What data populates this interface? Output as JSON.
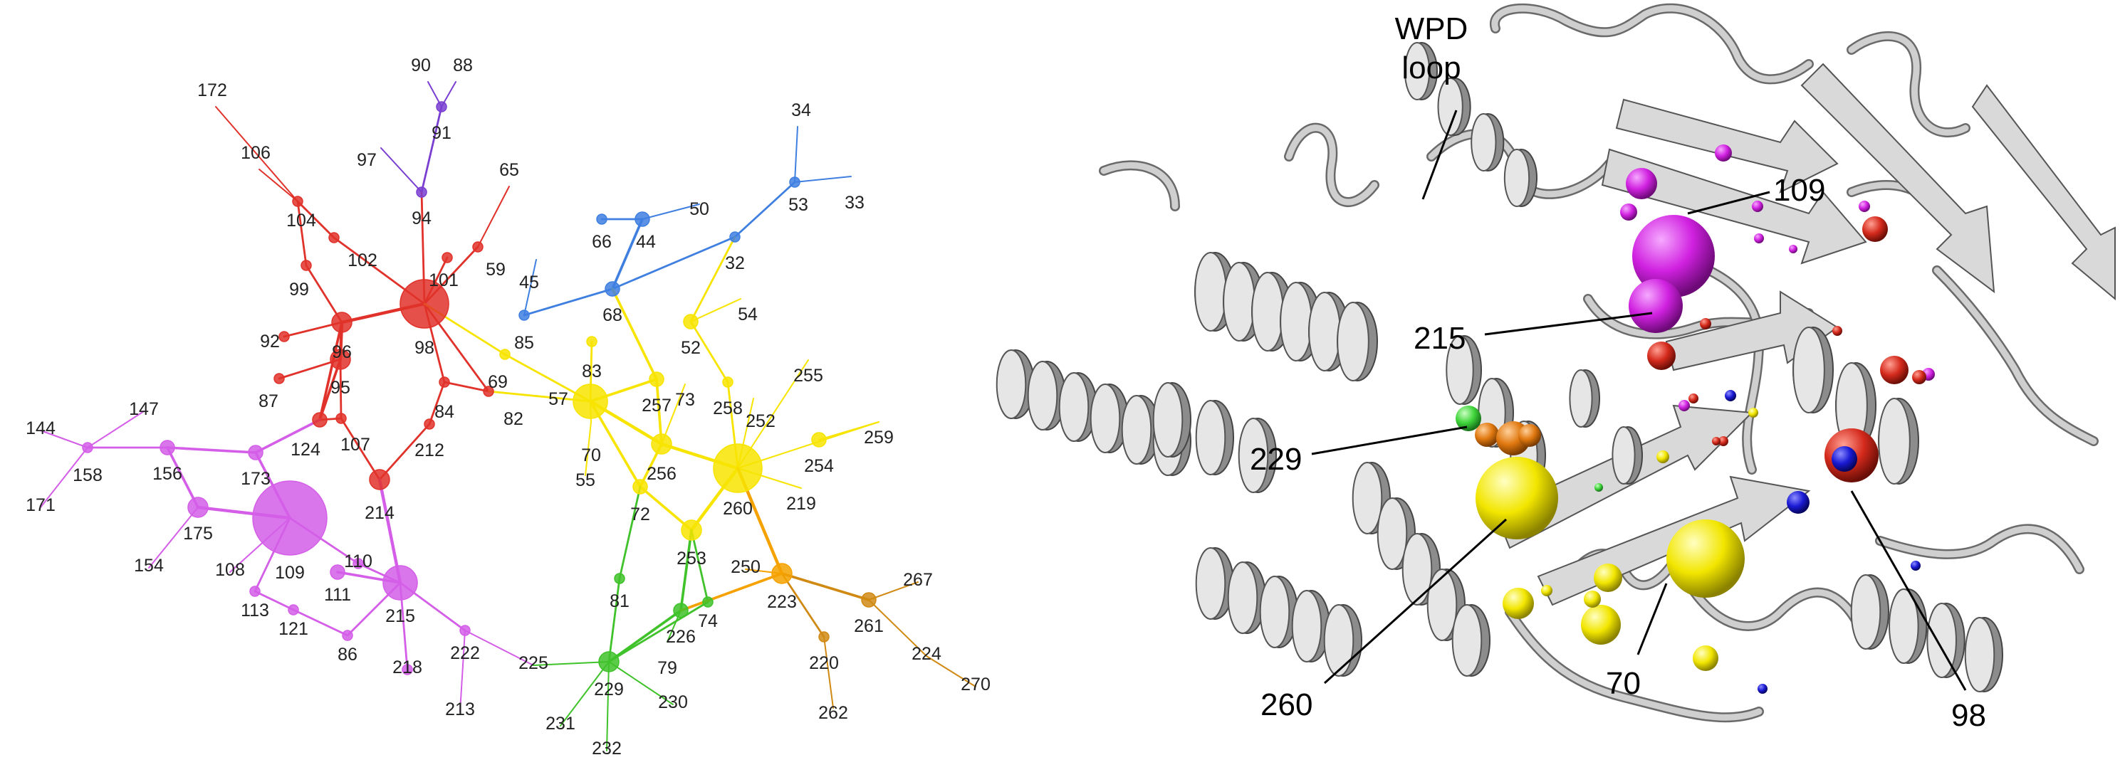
{
  "network": {
    "colors": {
      "purple": "#7a3fd1",
      "red": "#e0322a",
      "blue": "#3f7fe0",
      "yellow": "#f7e400",
      "orange": "#f5a200",
      "green": "#3fc22a",
      "magenta": "#d45ee8",
      "dark_orange": "#d08a14"
    },
    "nodes": [
      {
        "id": "90",
        "group": "purple",
        "size": 0
      },
      {
        "id": "88",
        "group": "purple",
        "size": 0
      },
      {
        "id": "91",
        "group": "purple",
        "size": 1
      },
      {
        "id": "97",
        "group": "purple",
        "size": 0
      },
      {
        "id": "94",
        "group": "purple",
        "size": 1
      },
      {
        "id": "172",
        "group": "red",
        "size": 0
      },
      {
        "id": "106",
        "group": "red",
        "size": 0
      },
      {
        "id": "104",
        "group": "red",
        "size": 1
      },
      {
        "id": "65",
        "group": "red",
        "size": 0
      },
      {
        "id": "102",
        "group": "red",
        "size": 1
      },
      {
        "id": "59",
        "group": "red",
        "size": 1
      },
      {
        "id": "101",
        "group": "red",
        "size": 1
      },
      {
        "id": "99",
        "group": "red",
        "size": 1
      },
      {
        "id": "98",
        "group": "red",
        "size": 6
      },
      {
        "id": "92",
        "group": "red",
        "size": 1
      },
      {
        "id": "96",
        "group": "red",
        "size": 3
      },
      {
        "id": "95",
        "group": "red",
        "size": 3
      },
      {
        "id": "87",
        "group": "red",
        "size": 1
      },
      {
        "id": "124",
        "group": "red",
        "size": 2
      },
      {
        "id": "107",
        "group": "red",
        "size": 1
      },
      {
        "id": "84",
        "group": "red",
        "size": 1
      },
      {
        "id": "82",
        "group": "red",
        "size": 1
      },
      {
        "id": "212",
        "group": "red",
        "size": 1
      },
      {
        "id": "214",
        "group": "red",
        "size": 3
      },
      {
        "id": "34",
        "group": "blue",
        "size": 0
      },
      {
        "id": "53",
        "group": "blue",
        "size": 1
      },
      {
        "id": "33",
        "group": "blue",
        "size": 0
      },
      {
        "id": "50",
        "group": "blue",
        "size": 0
      },
      {
        "id": "66",
        "group": "blue",
        "size": 1
      },
      {
        "id": "44",
        "group": "blue",
        "size": 2
      },
      {
        "id": "32",
        "group": "blue",
        "size": 1
      },
      {
        "id": "45",
        "group": "blue",
        "size": 0
      },
      {
        "id": "68",
        "group": "blue",
        "size": 2
      },
      {
        "id": "85",
        "group": "blue",
        "size": 1
      },
      {
        "id": "54",
        "group": "yellow",
        "size": 0
      },
      {
        "id": "52",
        "group": "yellow",
        "size": 2
      },
      {
        "id": "69",
        "group": "yellow",
        "size": 1
      },
      {
        "id": "83",
        "group": "yellow",
        "size": 1
      },
      {
        "id": "57",
        "group": "yellow",
        "size": 5
      },
      {
        "id": "257",
        "group": "yellow",
        "size": 2
      },
      {
        "id": "73",
        "group": "yellow",
        "size": 0
      },
      {
        "id": "258",
        "group": "yellow",
        "size": 1
      },
      {
        "id": "252",
        "group": "yellow",
        "size": 0
      },
      {
        "id": "255",
        "group": "yellow",
        "size": 0
      },
      {
        "id": "70",
        "group": "yellow",
        "size": 0
      },
      {
        "id": "256",
        "group": "yellow",
        "size": 3
      },
      {
        "id": "55",
        "group": "yellow",
        "size": 0
      },
      {
        "id": "260",
        "group": "yellow",
        "size": 6
      },
      {
        "id": "259",
        "group": "yellow",
        "size": 0
      },
      {
        "id": "254",
        "group": "yellow",
        "size": 2
      },
      {
        "id": "72",
        "group": "yellow",
        "size": 2
      },
      {
        "id": "219",
        "group": "yellow",
        "size": 0
      },
      {
        "id": "253",
        "group": "yellow",
        "size": 3
      },
      {
        "id": "250",
        "group": "orange",
        "size": 0
      },
      {
        "id": "223",
        "group": "orange",
        "size": 3
      },
      {
        "id": "267",
        "group": "dark_orange",
        "size": 0
      },
      {
        "id": "261",
        "group": "dark_orange",
        "size": 2
      },
      {
        "id": "220",
        "group": "dark_orange",
        "size": 1
      },
      {
        "id": "224",
        "group": "dark_orange",
        "size": 0
      },
      {
        "id": "270",
        "group": "dark_orange",
        "size": 0
      },
      {
        "id": "262",
        "group": "dark_orange",
        "size": 0
      },
      {
        "id": "81",
        "group": "green",
        "size": 1
      },
      {
        "id": "74",
        "group": "green",
        "size": 1
      },
      {
        "id": "226",
        "group": "green",
        "size": 2
      },
      {
        "id": "79",
        "group": "green",
        "size": 0
      },
      {
        "id": "229",
        "group": "green",
        "size": 3
      },
      {
        "id": "230",
        "group": "green",
        "size": 0
      },
      {
        "id": "231",
        "group": "green",
        "size": 0
      },
      {
        "id": "232",
        "group": "green",
        "size": 0
      },
      {
        "id": "144",
        "group": "magenta",
        "size": 0
      },
      {
        "id": "147",
        "group": "magenta",
        "size": 0
      },
      {
        "id": "158",
        "group": "magenta",
        "size": 1
      },
      {
        "id": "171",
        "group": "magenta",
        "size": 0
      },
      {
        "id": "156",
        "group": "magenta",
        "size": 2
      },
      {
        "id": "173",
        "group": "magenta",
        "size": 2
      },
      {
        "id": "175",
        "group": "magenta",
        "size": 3
      },
      {
        "id": "154",
        "group": "magenta",
        "size": 0
      },
      {
        "id": "109",
        "group": "magenta",
        "size": 8
      },
      {
        "id": "108",
        "group": "magenta",
        "size": 0
      },
      {
        "id": "110",
        "group": "magenta",
        "size": 1
      },
      {
        "id": "111",
        "group": "magenta",
        "size": 2
      },
      {
        "id": "113",
        "group": "magenta",
        "size": 1
      },
      {
        "id": "121",
        "group": "magenta",
        "size": 1
      },
      {
        "id": "215",
        "group": "magenta",
        "size": 5
      },
      {
        "id": "86",
        "group": "magenta",
        "size": 1
      },
      {
        "id": "218",
        "group": "magenta",
        "size": 1
      },
      {
        "id": "222",
        "group": "magenta",
        "size": 1
      },
      {
        "id": "213",
        "group": "magenta",
        "size": 0
      },
      {
        "id": "225",
        "group": "magenta",
        "size": 0
      }
    ],
    "edges": [
      [
        "90",
        "91"
      ],
      [
        "88",
        "91"
      ],
      [
        "91",
        "94"
      ],
      [
        "97",
        "94"
      ],
      [
        "94",
        "98"
      ],
      [
        "172",
        "104"
      ],
      [
        "106",
        "104"
      ],
      [
        "104",
        "99"
      ],
      [
        "104",
        "102"
      ],
      [
        "102",
        "98"
      ],
      [
        "99",
        "96"
      ],
      [
        "65",
        "59"
      ],
      [
        "59",
        "98"
      ],
      [
        "101",
        "98"
      ],
      [
        "98",
        "96"
      ],
      [
        "92",
        "96"
      ],
      [
        "96",
        "95"
      ],
      [
        "95",
        "87"
      ],
      [
        "95",
        "124"
      ],
      [
        "96",
        "124"
      ],
      [
        "107",
        "95"
      ],
      [
        "124",
        "107"
      ],
      [
        "107",
        "214"
      ],
      [
        "98",
        "84"
      ],
      [
        "84",
        "212"
      ],
      [
        "212",
        "214"
      ],
      [
        "98",
        "82"
      ],
      [
        "84",
        "82"
      ],
      [
        "82",
        "57"
      ],
      [
        "124",
        "173"
      ],
      [
        "214",
        "215"
      ],
      [
        "98",
        "69"
      ],
      [
        "34",
        "53"
      ],
      [
        "33",
        "53"
      ],
      [
        "53",
        "32"
      ],
      [
        "50",
        "44"
      ],
      [
        "66",
        "44"
      ],
      [
        "44",
        "68"
      ],
      [
        "32",
        "68"
      ],
      [
        "32",
        "52"
      ],
      [
        "45",
        "85"
      ],
      [
        "68",
        "85"
      ],
      [
        "68",
        "257"
      ],
      [
        "54",
        "52"
      ],
      [
        "52",
        "258"
      ],
      [
        "69",
        "57"
      ],
      [
        "83",
        "57"
      ],
      [
        "57",
        "257"
      ],
      [
        "57",
        "256"
      ],
      [
        "57",
        "70"
      ],
      [
        "55",
        "70"
      ],
      [
        "57",
        "72"
      ],
      [
        "257",
        "256"
      ],
      [
        "258",
        "260"
      ],
      [
        "73",
        "256"
      ],
      [
        "252",
        "260"
      ],
      [
        "255",
        "260"
      ],
      [
        "256",
        "260"
      ],
      [
        "260",
        "259"
      ],
      [
        "254",
        "259"
      ],
      [
        "256",
        "72"
      ],
      [
        "72",
        "253"
      ],
      [
        "253",
        "260"
      ],
      [
        "219",
        "260"
      ],
      [
        "72",
        "81"
      ],
      [
        "253",
        "226"
      ],
      [
        "253",
        "74"
      ],
      [
        "260",
        "223"
      ],
      [
        "250",
        "223"
      ],
      [
        "223",
        "220"
      ],
      [
        "223",
        "261"
      ],
      [
        "261",
        "267"
      ],
      [
        "261",
        "224"
      ],
      [
        "224",
        "270"
      ],
      [
        "220",
        "262"
      ],
      [
        "81",
        "229"
      ],
      [
        "74",
        "229"
      ],
      [
        "226",
        "229"
      ],
      [
        "79",
        "226"
      ],
      [
        "229",
        "230"
      ],
      [
        "229",
        "231"
      ],
      [
        "229",
        "232"
      ],
      [
        "226",
        "223"
      ],
      [
        "144",
        "158"
      ],
      [
        "147",
        "158"
      ],
      [
        "171",
        "158"
      ],
      [
        "158",
        "156"
      ],
      [
        "156",
        "173"
      ],
      [
        "156",
        "175"
      ],
      [
        "175",
        "154"
      ],
      [
        "175",
        "109"
      ],
      [
        "173",
        "109"
      ],
      [
        "109",
        "108"
      ],
      [
        "109",
        "110"
      ],
      [
        "110",
        "215"
      ],
      [
        "109",
        "113"
      ],
      [
        "113",
        "121"
      ],
      [
        "121",
        "86"
      ],
      [
        "86",
        "215"
      ],
      [
        "111",
        "215"
      ],
      [
        "215",
        "218"
      ],
      [
        "215",
        "222"
      ],
      [
        "222",
        "213"
      ],
      [
        "222",
        "225"
      ],
      [
        "225",
        "229"
      ]
    ]
  },
  "structure": {
    "labels": {
      "wpd_loop": [
        "WPD",
        "loop"
      ],
      "r109": "109",
      "r215": "215",
      "r229": "229",
      "r260": "260",
      "r70": "70",
      "r98": "98"
    },
    "colors": {
      "magenta": "#d021e0",
      "red": "#d42a1c",
      "yellow": "#f2e600",
      "orange": "#e0780f",
      "green": "#3fd43a",
      "blue": "#1a1ad4",
      "ribbon": "#d2d2d2"
    }
  }
}
